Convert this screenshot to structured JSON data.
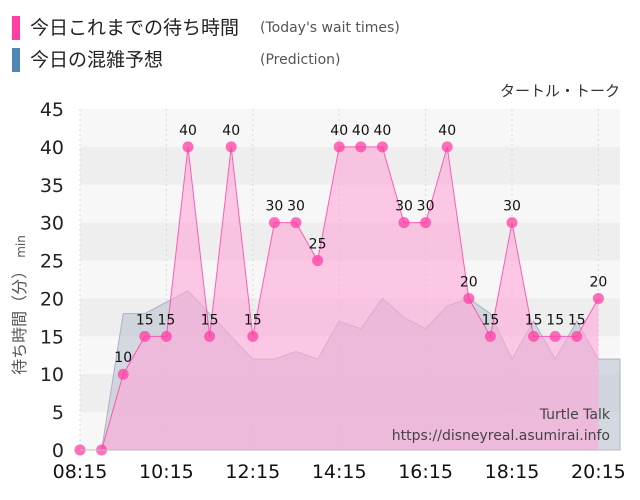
{
  "legend": {
    "today_label": "今日これまでの待ち時間",
    "today_sub": "(Today's wait times)",
    "prediction_label": "今日の混雑予想",
    "prediction_sub": "(Prediction)"
  },
  "attraction_name": "タートル・トーク",
  "watermark": {
    "name": "Turtle Talk",
    "url": "https://disneyreal.asumirai.info"
  },
  "colors": {
    "today": "#ff3fa4",
    "today_fill": "#ffa6d8",
    "prediction_swatch": "#4f86b3",
    "prediction_fill": "#b8bfcf"
  },
  "chart_data": {
    "type": "area",
    "title": "",
    "ylabel": "待ち時間（分）",
    "ylabel_unit": "min",
    "xlabel": "",
    "ylim": [
      0,
      45
    ],
    "yticks": [
      0,
      5,
      10,
      15,
      20,
      25,
      30,
      35,
      40,
      45
    ],
    "xlim": [
      "08:15",
      "20:45"
    ],
    "xticks": [
      "08:15",
      "10:15",
      "12:15",
      "14:15",
      "16:15",
      "18:15",
      "20:15"
    ],
    "grid": true,
    "series": [
      {
        "key": "today",
        "kind": "line+markers",
        "x": [
          "08:15",
          "08:45",
          "09:15",
          "09:45",
          "10:15",
          "10:45",
          "11:15",
          "11:45",
          "12:15",
          "12:45",
          "13:15",
          "13:45",
          "14:15",
          "14:45",
          "15:15",
          "15:45",
          "16:15",
          "16:45",
          "17:15",
          "17:45",
          "18:15",
          "18:45",
          "19:15",
          "19:45",
          "20:15"
        ],
        "values": [
          0,
          0,
          10,
          15,
          15,
          40,
          15,
          40,
          15,
          30,
          30,
          25,
          40,
          40,
          40,
          30,
          30,
          40,
          20,
          15,
          30,
          15,
          15,
          15,
          20
        ]
      },
      {
        "key": "prediction",
        "kind": "area",
        "x": [
          "08:15",
          "08:45",
          "09:15",
          "09:45",
          "10:15",
          "10:45",
          "11:15",
          "11:45",
          "12:15",
          "12:45",
          "13:15",
          "13:45",
          "14:15",
          "14:45",
          "15:15",
          "15:45",
          "16:15",
          "16:45",
          "17:15",
          "17:45",
          "18:15",
          "18:45",
          "19:15",
          "19:45",
          "20:15",
          "20:45"
        ],
        "values": [
          0,
          0,
          18,
          18,
          19.5,
          21,
          18,
          15,
          12,
          12,
          13,
          12,
          17,
          16,
          20,
          17.5,
          16,
          19,
          20,
          18,
          12,
          17,
          12,
          17,
          12,
          12
        ]
      }
    ]
  }
}
